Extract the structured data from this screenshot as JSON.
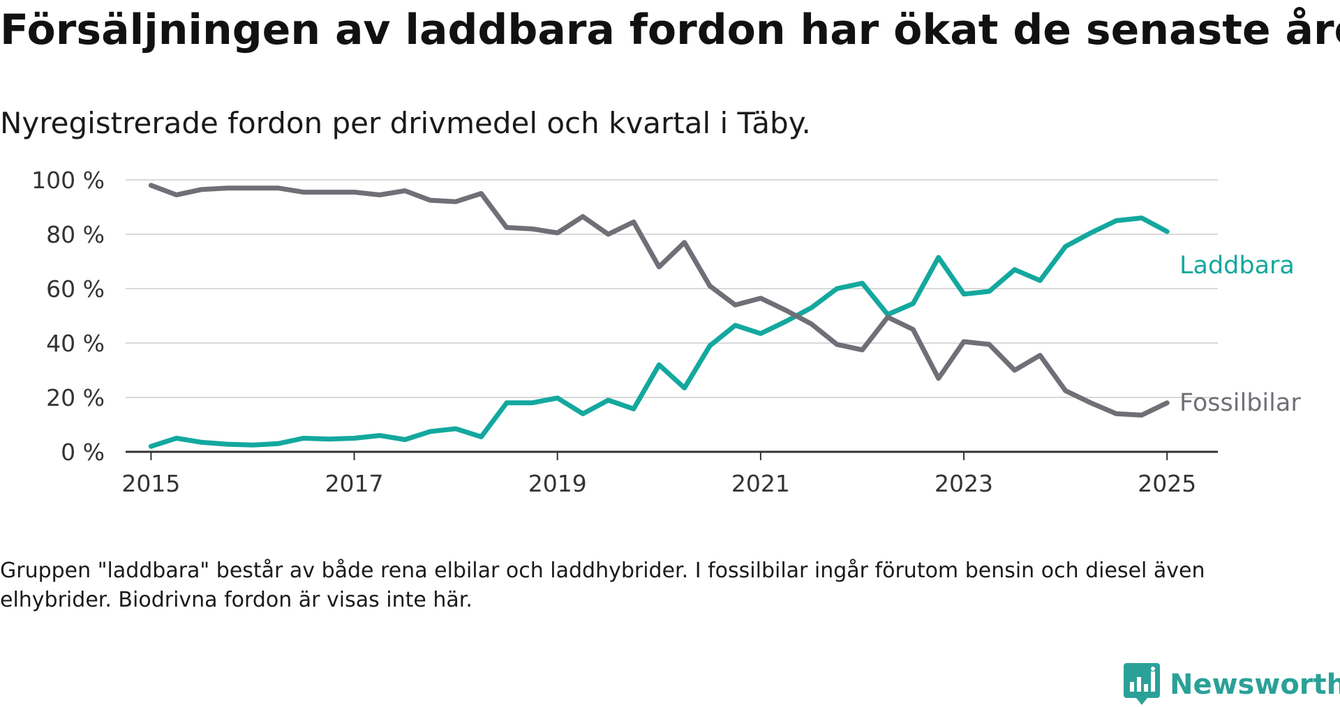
{
  "title": "Försäljningen av laddbara fordon har ökat de senaste åren",
  "subtitle": "Nyregistrerade fordon per drivmedel och kvartal i Täby.",
  "footnote": "Gruppen \"laddbara\" består av både rena elbilar och laddhybrider. I fossilbilar ingår förutom bensin och diesel även elhybrider. Biodrivna fordon är visas inte här.",
  "brand": {
    "name": "Newsworthy",
    "icon": "newsworthy-logo-icon",
    "color": "#2aa198"
  },
  "chart_data": {
    "type": "line",
    "title": "Försäljningen av laddbara fordon har ökat de senaste åren",
    "subtitle": "Nyregistrerade fordon per drivmedel och kvartal i Täby.",
    "xlabel": "",
    "ylabel": "",
    "xlim": [
      2014.75,
      2025.5
    ],
    "ylim": [
      0,
      100
    ],
    "x_ticks": [
      2015,
      2017,
      2019,
      2021,
      2023,
      2025
    ],
    "x_tick_labels": [
      "2015",
      "2017",
      "2019",
      "2021",
      "2023",
      "2025"
    ],
    "y_ticks": [
      0,
      20,
      40,
      60,
      80,
      100
    ],
    "y_tick_labels": [
      "0 %",
      "20 %",
      "40 %",
      "60 %",
      "80 %",
      "100 %"
    ],
    "grid": "horizontal",
    "legend": "direct labels at line ends",
    "x": [
      2015.0,
      2015.25,
      2015.5,
      2015.75,
      2016.0,
      2016.25,
      2016.5,
      2016.75,
      2017.0,
      2017.25,
      2017.5,
      2017.75,
      2018.0,
      2018.25,
      2018.5,
      2018.75,
      2019.0,
      2019.25,
      2019.5,
      2019.75,
      2020.0,
      2020.25,
      2020.5,
      2020.75,
      2021.0,
      2021.25,
      2021.5,
      2021.75,
      2022.0,
      2022.25,
      2022.5,
      2022.75,
      2023.0,
      2023.25,
      2023.5,
      2023.75,
      2024.0,
      2024.25,
      2024.5,
      2024.75,
      2025.0
    ],
    "series": [
      {
        "name": "Laddbara",
        "color": "#13a89e",
        "values": [
          2,
          5,
          3.5,
          2.8,
          2.5,
          3,
          5,
          4.7,
          5,
          6,
          4.5,
          7.5,
          8.5,
          5.5,
          18,
          18,
          19.8,
          14,
          19,
          15.8,
          32,
          23.5,
          39,
          46.5,
          43.5,
          48,
          53,
          60,
          62,
          50.5,
          54.5,
          71.5,
          58,
          59,
          67,
          63,
          75.5,
          80.5,
          85,
          86,
          81
        ]
      },
      {
        "name": "Fossilbilar",
        "color": "#6f6f77",
        "values": [
          98,
          94.5,
          96.5,
          97,
          97,
          97,
          95.5,
          95.5,
          95.5,
          94.5,
          96,
          92.5,
          92,
          95,
          82.5,
          82,
          80.5,
          86.5,
          80,
          84.5,
          68,
          77,
          61,
          54,
          56.5,
          52,
          47,
          39.5,
          37.5,
          49.5,
          45,
          27,
          40.5,
          39.5,
          30,
          35.5,
          22.5,
          18,
          14,
          13.5,
          18
        ]
      }
    ]
  }
}
